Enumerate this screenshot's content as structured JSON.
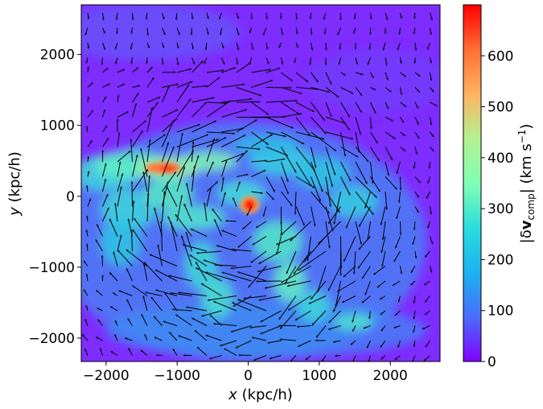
{
  "chart_data": {
    "type": "heatmap",
    "title": "",
    "xlabel_var": "x",
    "xlabel_unit": "(kpc/h)",
    "ylabel_var": "y",
    "ylabel_unit": "(kpc/h)",
    "xlim": [
      -2350,
      2700
    ],
    "ylim": [
      -2330,
      2700
    ],
    "xticks": [
      -2000,
      -1000,
      0,
      1000,
      2000
    ],
    "xtick_labels": [
      "−2000",
      "−1000",
      "0",
      "1000",
      "2000"
    ],
    "yticks": [
      -2000,
      -1000,
      0,
      1000,
      2000
    ],
    "ytick_labels": [
      "−2000",
      "−1000",
      "0",
      "1000",
      "2000"
    ],
    "colormap": "rainbow",
    "colorbar": {
      "label": "|δv_comp| (km s⁻¹)",
      "label_main": "|δ",
      "label_bold": "v",
      "label_sub": "comp",
      "label_tail": "| (km s",
      "label_sup": "−1",
      "label_end": ")",
      "range": [
        0,
        700
      ],
      "ticks": [
        0,
        100,
        200,
        300,
        400,
        500,
        600
      ],
      "tick_labels": [
        "0",
        "100",
        "200",
        "300",
        "400",
        "500",
        "600"
      ]
    },
    "features": [
      {
        "name": "central peak",
        "x": 20,
        "y": -120,
        "value": 700
      },
      {
        "name": "northwest arc peak",
        "x": -1200,
        "y": 400,
        "value": 520
      },
      {
        "name": "arc ridge",
        "x": -1700,
        "y": 100,
        "value": 330
      },
      {
        "name": "southern arc",
        "x": 400,
        "y": -1000,
        "value": 300
      },
      {
        "name": "background",
        "x": 1800,
        "y": 2200,
        "value": 40
      }
    ],
    "overlay": "velocity vector field (quiver)"
  },
  "colors": {
    "background": "#8020ff",
    "low": "#7a1cff",
    "mid": "#40c8e8",
    "high": "#ff1800"
  }
}
